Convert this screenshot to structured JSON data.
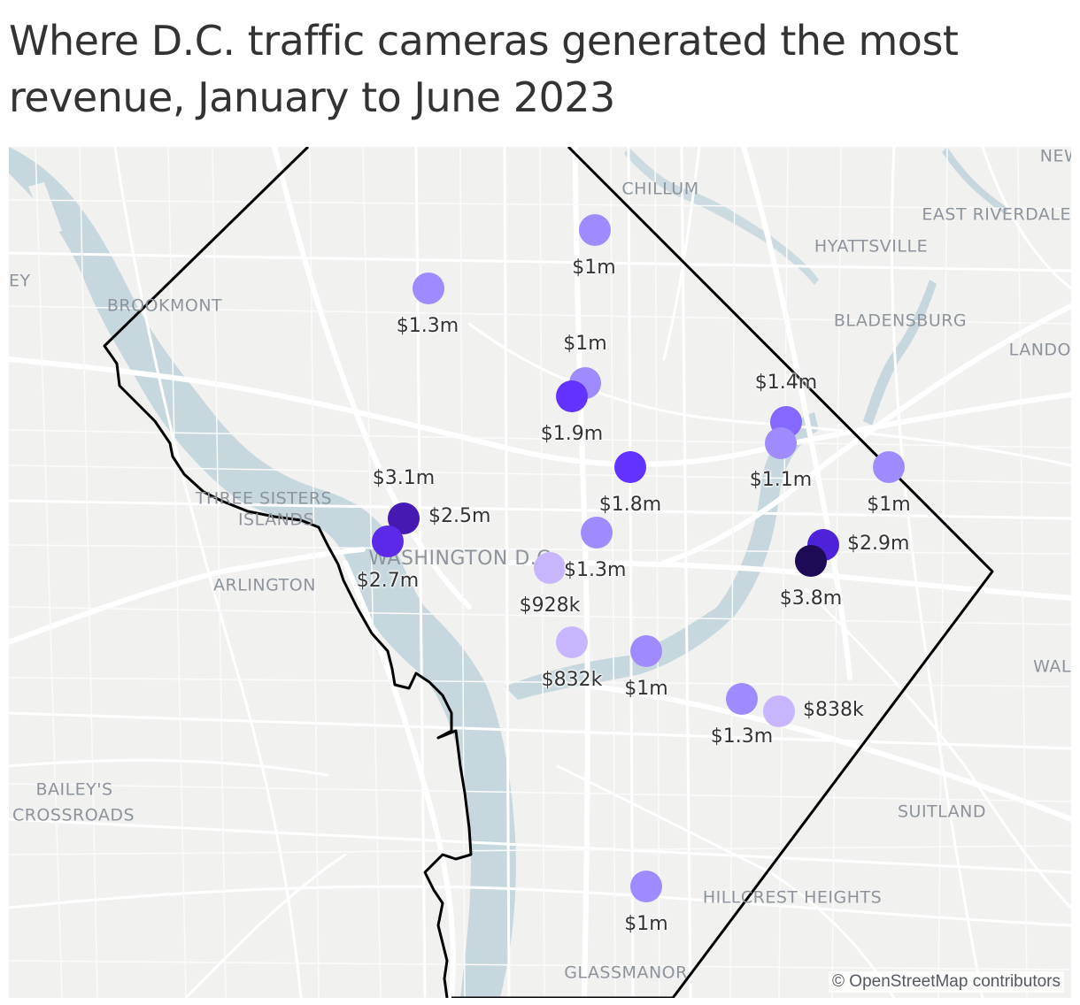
{
  "title": "Where D.C. traffic cameras generated the most revenue, January to June 2023",
  "credit": "© OpenStreetMap contributors",
  "colors": {
    "background": "#f1f1f0",
    "water": "#c6d8dd",
    "roads": "#ffffff",
    "boundary": "#000000",
    "label_gray": "#8d949c",
    "dot_scale": [
      "#c7b6ff",
      "#a08aff",
      "#8568ff",
      "#6233ff",
      "#4d22d8",
      "#4619b3",
      "#1d0b55"
    ]
  },
  "places": [
    "NEW",
    "CHILLUM",
    "EAST RIVERDALE",
    "HYATTSVILLE",
    "BROOKMONT",
    "BLADENSBURG",
    "LANDO",
    "THREE SISTERS",
    "ISLANDS",
    "WASHINGTON D.C.",
    "ARLINGTON",
    "WAL",
    "BAILEY'S",
    "CROSSROADS",
    "SUITLAND",
    "HILLCREST HEIGHTS",
    "GLASSMANOR",
    "EY"
  ],
  "cameras": [
    {
      "revenue": "$1m",
      "value_millions": 1.0
    },
    {
      "revenue": "$1.3m",
      "value_millions": 1.3
    },
    {
      "revenue": "$1m",
      "value_millions": 1.0
    },
    {
      "revenue": "$1.9m",
      "value_millions": 1.9
    },
    {
      "revenue": "$1.4m",
      "value_millions": 1.4
    },
    {
      "revenue": "$1.1m",
      "value_millions": 1.1
    },
    {
      "revenue": "$1.8m",
      "value_millions": 1.8
    },
    {
      "revenue": "$1m",
      "value_millions": 1.0
    },
    {
      "revenue": "$3.1m",
      "value_millions": 3.1
    },
    {
      "revenue": "$2.5m",
      "value_millions": 2.5
    },
    {
      "revenue": "$2.7m",
      "value_millions": 2.7
    },
    {
      "revenue": "$2.9m",
      "value_millions": 2.9
    },
    {
      "revenue": "$1.3m",
      "value_millions": 1.3
    },
    {
      "revenue": "$928k",
      "value_millions": 0.928
    },
    {
      "revenue": "$3.8m",
      "value_millions": 3.8
    },
    {
      "revenue": "$832k",
      "value_millions": 0.832
    },
    {
      "revenue": "$1m",
      "value_millions": 1.0
    },
    {
      "revenue": "$838k",
      "value_millions": 0.838
    },
    {
      "revenue": "$1.3m",
      "value_millions": 1.3
    },
    {
      "revenue": "$1m",
      "value_millions": 1.0
    }
  ]
}
